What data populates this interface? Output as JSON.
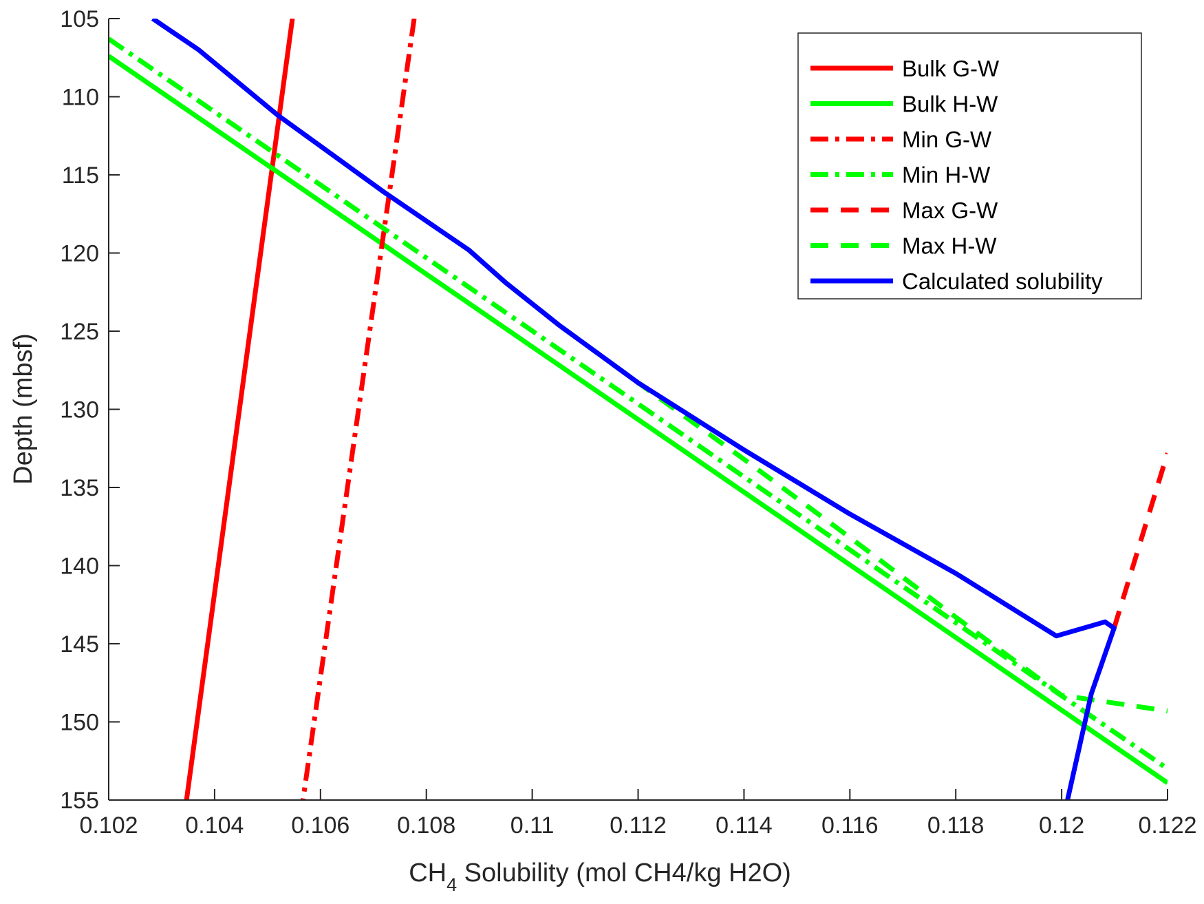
{
  "chart_data": {
    "type": "line",
    "title": "",
    "xlabel": {
      "main": "CH",
      "subscript": "4",
      "rest": " Solubility (mol CH4/kg H2O)"
    },
    "ylabel": "Depth (mbsf)",
    "xlim": [
      0.102,
      0.122
    ],
    "ylim": [
      105,
      155
    ],
    "y_reversed": true,
    "xticks": [
      0.102,
      0.104,
      0.106,
      0.108,
      0.11,
      0.112,
      0.114,
      0.116,
      0.118,
      0.12,
      0.122
    ],
    "xtick_labels": [
      "0.102",
      "0.104",
      "0.106",
      "0.108",
      "0.11",
      "0.112",
      "0.114",
      "0.116",
      "0.118",
      "0.12",
      "0.122"
    ],
    "yticks": [
      105,
      110,
      115,
      120,
      125,
      130,
      135,
      140,
      145,
      150,
      155
    ],
    "ytick_labels": [
      "105",
      "110",
      "115",
      "120",
      "125",
      "130",
      "135",
      "140",
      "145",
      "150",
      "155"
    ],
    "grid": false,
    "legend_position": "top-right",
    "series": [
      {
        "name": "Bulk G-W",
        "color": "#ff0000",
        "style": "solid",
        "points": [
          [
            0.10547,
            105
          ],
          [
            0.10347,
            155
          ]
        ]
      },
      {
        "name": "Bulk H-W",
        "color": "#00ff00",
        "style": "solid",
        "points": [
          [
            0.102,
            107.4
          ],
          [
            0.122,
            153.9
          ]
        ]
      },
      {
        "name": "Min G-W",
        "color": "#ff0000",
        "style": "dashdot",
        "points": [
          [
            0.10777,
            105
          ],
          [
            0.10567,
            155
          ]
        ]
      },
      {
        "name": "Min H-W",
        "color": "#00ff00",
        "style": "dashdot",
        "points": [
          [
            0.102,
            106.3
          ],
          [
            0.122,
            153.0
          ]
        ]
      },
      {
        "name": "Max G-W",
        "color": "#ff0000",
        "style": "dashed",
        "points": [
          [
            0.12099,
            144.0
          ],
          [
            0.122,
            132.8
          ]
        ]
      },
      {
        "name": "Max H-W",
        "color": "#00ff00",
        "style": "dashed",
        "points": [
          [
            0.1088,
            119.8
          ],
          [
            0.1095,
            121.9
          ],
          [
            0.1105,
            124.6
          ],
          [
            0.112,
            128.3
          ],
          [
            0.114,
            133.2
          ],
          [
            0.116,
            138.2
          ],
          [
            0.118,
            143.3
          ],
          [
            0.12,
            148.3
          ],
          [
            0.122,
            149.3
          ]
        ]
      },
      {
        "name": "Calculated solubility",
        "color": "#0000ff",
        "style": "solid",
        "points": [
          [
            0.10283,
            105
          ],
          [
            0.1037,
            107.0
          ],
          [
            0.1052,
            111.2
          ],
          [
            0.1072,
            116.1
          ],
          [
            0.1088,
            119.8
          ],
          [
            0.1095,
            121.9
          ],
          [
            0.1105,
            124.6
          ],
          [
            0.112,
            128.3
          ],
          [
            0.114,
            132.6
          ],
          [
            0.116,
            136.7
          ],
          [
            0.118,
            140.5
          ],
          [
            0.1199,
            144.5
          ],
          [
            0.12082,
            143.6
          ],
          [
            0.12099,
            144.0
          ],
          [
            0.12056,
            148.2
          ],
          [
            0.12011,
            155
          ]
        ]
      }
    ]
  }
}
